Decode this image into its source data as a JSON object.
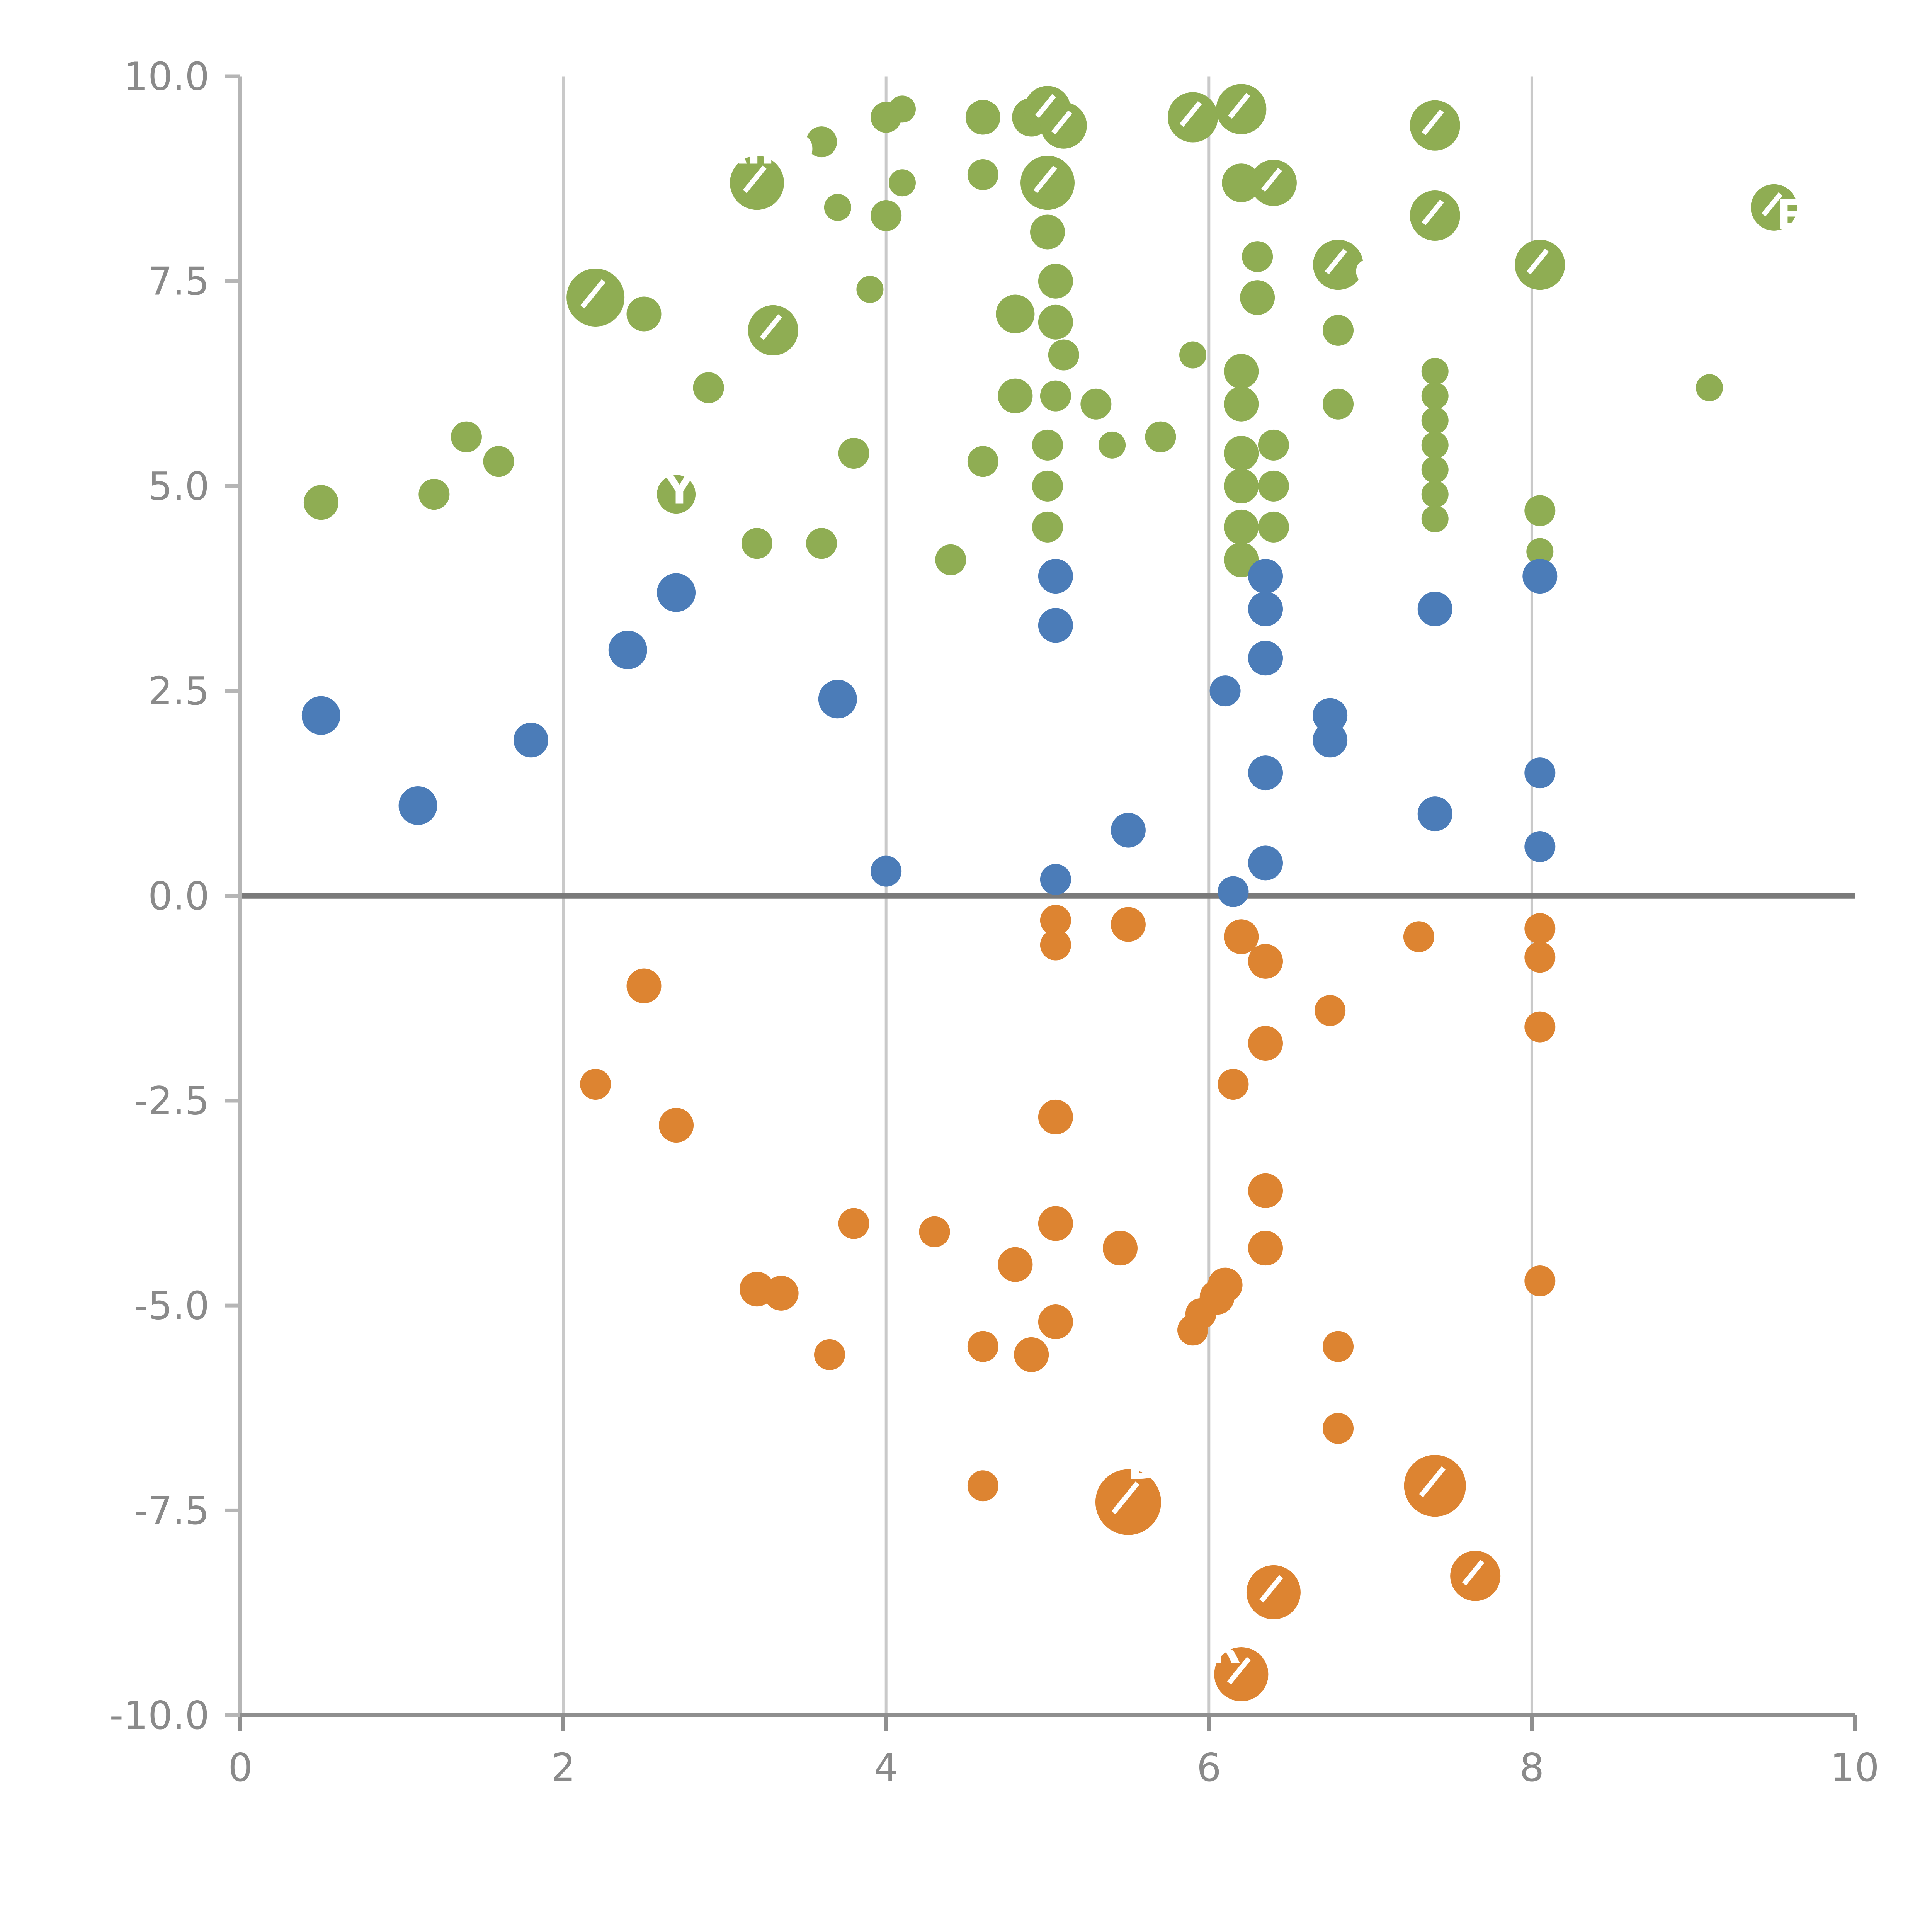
{
  "figure": {
    "background": "#ffffff",
    "grid_color": "#c9c9c9",
    "zero_line_color": "#7a7a7a",
    "spine_left_color": "#b5b5b5",
    "spine_bottom_color": "#8f8f8f",
    "tick_label_color": "#8a8a8a"
  },
  "chart_data": {
    "type": "scatter",
    "title": "",
    "xlabel": "",
    "ylabel": "",
    "xlim": [
      0,
      10
    ],
    "ylim": [
      -10,
      10
    ],
    "xticks": [
      "0",
      "2",
      "4",
      "6",
      "8",
      "10"
    ],
    "xtick_values": [
      0,
      2,
      4,
      6,
      8,
      10
    ],
    "yticks": [
      "-10.0",
      "-7.5",
      "-5.0",
      "-2.5",
      "0.0",
      "2.5",
      "5.0",
      "7.5",
      "10.0"
    ],
    "ytick_values": [
      -10,
      -7.5,
      -5,
      -2.5,
      0,
      2.5,
      5,
      7.5,
      10
    ],
    "grid": "vertical gridlines at interior x ticks; heavy horizontal line at y=0",
    "legend": "none",
    "series": [
      {
        "name": "green-bubbles",
        "color": "#8fad53",
        "points": [
          [
            0.5,
            4.8,
            9
          ],
          [
            1.2,
            4.9,
            8
          ],
          [
            1.4,
            5.6,
            8
          ],
          [
            1.6,
            5.3,
            8
          ],
          [
            2.2,
            7.3,
            15
          ],
          [
            2.5,
            7.1,
            9
          ],
          [
            2.9,
            6.2,
            8
          ],
          [
            2.7,
            4.9,
            10
          ],
          [
            3.2,
            8.7,
            14
          ],
          [
            3.3,
            6.9,
            13
          ],
          [
            3.2,
            4.3,
            8
          ],
          [
            3.6,
            9.2,
            8
          ],
          [
            3.7,
            8.4,
            7
          ],
          [
            3.8,
            5.4,
            8
          ],
          [
            3.6,
            4.3,
            8
          ],
          [
            4.0,
            9.5,
            8
          ],
          [
            4.0,
            8.3,
            8
          ],
          [
            3.9,
            7.4,
            7
          ],
          [
            4.1,
            8.7,
            7
          ],
          [
            4.1,
            9.6,
            7
          ],
          [
            4.4,
            4.1,
            8
          ],
          [
            4.6,
            9.5,
            9
          ],
          [
            4.6,
            8.8,
            8
          ],
          [
            4.6,
            5.3,
            8
          ],
          [
            4.8,
            6.1,
            9
          ],
          [
            4.8,
            7.1,
            10
          ],
          [
            4.9,
            9.5,
            10
          ],
          [
            5.0,
            9.6,
            12
          ],
          [
            5.1,
            9.4,
            12
          ],
          [
            5.0,
            8.7,
            14
          ],
          [
            5.0,
            8.1,
            9
          ],
          [
            5.05,
            7.5,
            9
          ],
          [
            5.05,
            7.0,
            9
          ],
          [
            5.1,
            6.6,
            8
          ],
          [
            5.05,
            6.1,
            8
          ],
          [
            5.0,
            5.5,
            8
          ],
          [
            5.0,
            5.0,
            8
          ],
          [
            5.0,
            4.5,
            8
          ],
          [
            5.3,
            6.0,
            8
          ],
          [
            5.4,
            5.5,
            7
          ],
          [
            5.7,
            5.6,
            8
          ],
          [
            5.9,
            6.6,
            7
          ],
          [
            5.9,
            9.5,
            13
          ],
          [
            6.2,
            9.6,
            13
          ],
          [
            6.2,
            8.7,
            10
          ],
          [
            6.4,
            8.7,
            12
          ],
          [
            6.3,
            7.8,
            8
          ],
          [
            6.3,
            7.3,
            9
          ],
          [
            6.2,
            6.4,
            9
          ],
          [
            6.2,
            6.0,
            9
          ],
          [
            6.2,
            5.4,
            9
          ],
          [
            6.2,
            5.0,
            9
          ],
          [
            6.2,
            4.5,
            9
          ],
          [
            6.2,
            4.1,
            9
          ],
          [
            6.4,
            5.5,
            8
          ],
          [
            6.4,
            5.0,
            8
          ],
          [
            6.4,
            4.5,
            8
          ],
          [
            6.8,
            7.7,
            13
          ],
          [
            6.8,
            6.9,
            8
          ],
          [
            6.8,
            6.0,
            8
          ],
          [
            7.4,
            9.4,
            13
          ],
          [
            7.4,
            8.3,
            13
          ],
          [
            7.4,
            6.4,
            7
          ],
          [
            7.4,
            6.1,
            7
          ],
          [
            7.4,
            5.8,
            7
          ],
          [
            7.4,
            5.5,
            7
          ],
          [
            7.4,
            5.2,
            7
          ],
          [
            7.4,
            4.9,
            7
          ],
          [
            7.4,
            4.6,
            7
          ],
          [
            8.05,
            7.7,
            13
          ],
          [
            8.05,
            4.7,
            8
          ],
          [
            8.05,
            4.2,
            7
          ],
          [
            9.1,
            6.2,
            7
          ],
          [
            9.5,
            8.4,
            12
          ]
        ]
      },
      {
        "name": "blue-bubbles",
        "color": "#4b7cb8",
        "points": [
          [
            0.5,
            2.2,
            10
          ],
          [
            1.1,
            1.1,
            10
          ],
          [
            1.8,
            1.9,
            9
          ],
          [
            2.4,
            3.0,
            10
          ],
          [
            2.7,
            3.7,
            10
          ],
          [
            3.7,
            2.4,
            10
          ],
          [
            4.0,
            0.3,
            8
          ],
          [
            5.05,
            3.9,
            9
          ],
          [
            5.05,
            3.3,
            9
          ],
          [
            5.05,
            0.2,
            8
          ],
          [
            5.5,
            0.8,
            9
          ],
          [
            6.1,
            2.5,
            8
          ],
          [
            6.15,
            0.05,
            8
          ],
          [
            6.35,
            2.9,
            9
          ],
          [
            6.35,
            1.5,
            9
          ],
          [
            6.35,
            0.4,
            9
          ],
          [
            6.35,
            3.9,
            9
          ],
          [
            6.35,
            3.5,
            9
          ],
          [
            6.75,
            2.2,
            9
          ],
          [
            6.75,
            1.9,
            9
          ],
          [
            7.4,
            3.5,
            9
          ],
          [
            7.4,
            1.0,
            9
          ],
          [
            8.05,
            3.9,
            9
          ],
          [
            8.05,
            1.5,
            8
          ],
          [
            8.05,
            0.6,
            8
          ]
        ]
      },
      {
        "name": "orange-bubbles",
        "color": "#dd8431",
        "points": [
          [
            2.2,
            -2.3,
            8
          ],
          [
            2.5,
            -1.1,
            9
          ],
          [
            2.7,
            -2.8,
            9
          ],
          [
            3.2,
            -4.8,
            9
          ],
          [
            3.35,
            -4.85,
            9
          ],
          [
            3.65,
            -5.6,
            8
          ],
          [
            3.8,
            -4.0,
            8
          ],
          [
            4.3,
            -4.1,
            8
          ],
          [
            4.6,
            -5.5,
            8
          ],
          [
            4.6,
            -7.2,
            8
          ],
          [
            4.8,
            -4.5,
            9
          ],
          [
            4.9,
            -5.6,
            9
          ],
          [
            5.05,
            -2.7,
            9
          ],
          [
            5.05,
            -4.0,
            9
          ],
          [
            5.05,
            -5.2,
            9
          ],
          [
            5.05,
            -0.3,
            8
          ],
          [
            5.05,
            -0.6,
            8
          ],
          [
            5.5,
            -0.35,
            9
          ],
          [
            5.45,
            -4.3,
            9
          ],
          [
            5.5,
            -7.4,
            17
          ],
          [
            5.9,
            -5.3,
            8
          ],
          [
            5.95,
            -5.1,
            8
          ],
          [
            6.05,
            -4.9,
            9
          ],
          [
            6.1,
            -4.75,
            9
          ],
          [
            6.15,
            -2.3,
            8
          ],
          [
            6.2,
            -0.5,
            9
          ],
          [
            6.35,
            -0.8,
            9
          ],
          [
            6.35,
            -1.8,
            9
          ],
          [
            6.35,
            -3.6,
            9
          ],
          [
            6.35,
            -4.3,
            9
          ],
          [
            6.4,
            -8.5,
            14
          ],
          [
            6.2,
            -9.5,
            14
          ],
          [
            6.75,
            -1.4,
            8
          ],
          [
            6.8,
            -5.5,
            8
          ],
          [
            6.8,
            -6.5,
            8
          ],
          [
            7.3,
            -0.5,
            8
          ],
          [
            7.4,
            -7.2,
            16
          ],
          [
            7.65,
            -8.3,
            13
          ],
          [
            8.05,
            -0.4,
            8
          ],
          [
            8.05,
            -0.75,
            8
          ],
          [
            8.05,
            -1.6,
            8
          ],
          [
            8.05,
            -4.7,
            8
          ]
        ]
      }
    ],
    "annotations": [
      {
        "text": "AirD",
        "x": 3.25,
        "y": 9.1
      },
      {
        "text": "Y",
        "x": 2.72,
        "y": 4.95
      },
      {
        "text": "cs",
        "x": 7.05,
        "y": 7.65
      },
      {
        "text": "E",
        "x": 9.6,
        "y": 8.3
      },
      {
        "text": "D",
        "x": 5.6,
        "y": -6.95
      },
      {
        "text": "R",
        "x": 6.1,
        "y": -9.2
      }
    ]
  }
}
